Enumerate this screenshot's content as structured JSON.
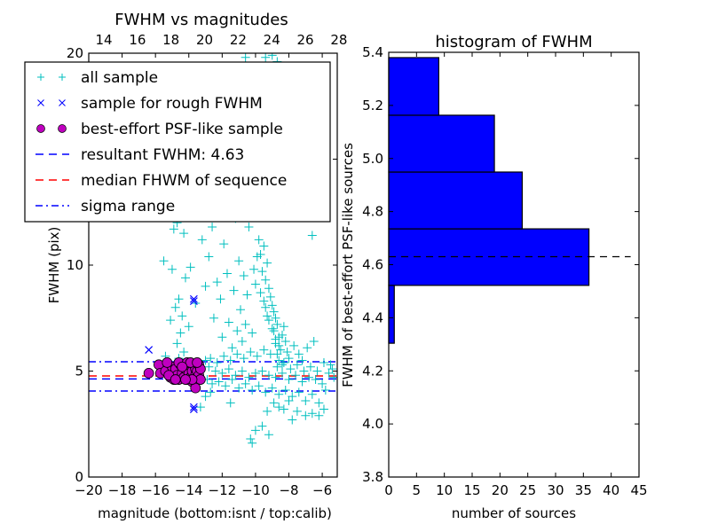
{
  "chart_data": [
    {
      "type": "scatter",
      "title": "FWHM vs magnitudes",
      "xlabel": "magnitude (bottom:isnt / top:calib)",
      "ylabel": "FWHM (pix)",
      "xlim": [
        -20,
        -5.1
      ],
      "ylim": [
        0,
        20
      ],
      "top_xlim": [
        13.1,
        27.9
      ],
      "xticks": [
        -20,
        -18,
        -16,
        -14,
        -12,
        -10,
        -8,
        -6
      ],
      "xtick_labels": [
        "−20",
        "−18",
        "−16",
        "−14",
        "−12",
        "−10",
        "−8",
        "−6"
      ],
      "top_xticks": [
        14,
        16,
        18,
        20,
        22,
        24,
        26,
        28
      ],
      "yticks": [
        0,
        5,
        10,
        20
      ],
      "ytick_labels": [
        "0",
        "5",
        "10",
        "20"
      ],
      "grid": false,
      "legend": {
        "placement": "top-left",
        "entries": [
          {
            "label": "all sample",
            "marker": "+",
            "color": "#00bfbf"
          },
          {
            "label": "sample for rough FWHM",
            "marker": "x",
            "color": "#0000ff"
          },
          {
            "label": "best-effort PSF-like sample",
            "marker": "o",
            "color": "#bf00bf"
          },
          {
            "label": "resultant FWHM: 4.63",
            "marker": "dashed",
            "color": "#0000ff"
          },
          {
            "label": "median FHWM of sequence",
            "marker": "dashed",
            "color": "#ff0000"
          },
          {
            "label": "sigma range",
            "marker": "dashdot",
            "color": "#0000ff"
          }
        ]
      },
      "hlines": [
        {
          "name": "resultant-fwhm",
          "y": 4.63,
          "style": "dashed",
          "color": "#0000ff"
        },
        {
          "name": "median-fwhm",
          "y": 4.77,
          "style": "dashed",
          "color": "#ff0000"
        },
        {
          "name": "sigma-upper",
          "y": 5.44,
          "style": "dashdot",
          "color": "#0000ff"
        },
        {
          "name": "sigma-lower",
          "y": 4.06,
          "style": "dashdot",
          "color": "#0000ff"
        }
      ],
      "series": [
        {
          "name": "all sample",
          "marker": "+",
          "color": "#00bfbf",
          "points": [
            [
              -15.5,
              10.2
            ],
            [
              -14.9,
              11.7
            ],
            [
              -14.7,
              12.0
            ],
            [
              -14.3,
              11.5
            ],
            [
              -15.0,
              9.8
            ],
            [
              -14.2,
              9.4
            ],
            [
              -14.6,
              8.4
            ],
            [
              -14.8,
              8.0
            ],
            [
              -14.4,
              7.6
            ],
            [
              -15.1,
              7.4
            ],
            [
              -14.5,
              6.8
            ],
            [
              -14.7,
              6.3
            ],
            [
              -15.4,
              5.7
            ],
            [
              -14.3,
              5.9
            ],
            [
              -14.6,
              5.6
            ],
            [
              -14.0,
              7.1
            ],
            [
              -13.6,
              8.2
            ],
            [
              -13.9,
              9.9
            ],
            [
              -13.2,
              11.2
            ],
            [
              -13.0,
              9.0
            ],
            [
              -12.2,
              12.6
            ],
            [
              -11.8,
              14.5
            ],
            [
              -12.4,
              16.1
            ],
            [
              -11.5,
              18.2
            ],
            [
              -10.6,
              19.8
            ],
            [
              -9.4,
              19.8
            ],
            [
              -9.0,
              19.9
            ],
            [
              -8.7,
              19.6
            ],
            [
              -12.6,
              11.8
            ],
            [
              -11.9,
              11.0
            ],
            [
              -11.2,
              12.2
            ],
            [
              -10.9,
              13.5
            ],
            [
              -10.3,
              14.8
            ],
            [
              -9.6,
              15.7
            ],
            [
              -9.2,
              16.6
            ],
            [
              -8.9,
              17.3
            ],
            [
              -8.5,
              15.9
            ],
            [
              -8.2,
              14.2
            ],
            [
              -7.6,
              13.8
            ],
            [
              -6.6,
              11.4
            ],
            [
              -9.7,
              10.5
            ],
            [
              -9.5,
              10.9
            ],
            [
              -9.3,
              10.1
            ],
            [
              -9.6,
              9.7
            ],
            [
              -9.4,
              9.3
            ],
            [
              -9.2,
              8.9
            ],
            [
              -9.1,
              8.5
            ],
            [
              -9.0,
              8.1
            ],
            [
              -8.9,
              7.8
            ],
            [
              -8.8,
              7.5
            ],
            [
              -8.7,
              7.2
            ],
            [
              -8.9,
              6.9
            ],
            [
              -8.6,
              6.6
            ],
            [
              -8.8,
              6.3
            ],
            [
              -8.5,
              6.0
            ],
            [
              -8.7,
              5.8
            ],
            [
              -8.6,
              5.5
            ],
            [
              -8.4,
              5.3
            ],
            [
              -9.3,
              7.6
            ],
            [
              -9.5,
              8.3
            ],
            [
              -9.8,
              11.2
            ],
            [
              -9.9,
              10.4
            ],
            [
              -10.1,
              9.8
            ],
            [
              -10.0,
              9.1
            ],
            [
              -9.7,
              8.7
            ],
            [
              -9.4,
              8.0
            ],
            [
              -9.2,
              7.4
            ],
            [
              -9.0,
              7.0
            ],
            [
              -8.8,
              6.5
            ],
            [
              -8.6,
              6.2
            ],
            [
              -8.4,
              6.7
            ],
            [
              -8.3,
              7.1
            ],
            [
              -8.2,
              6.4
            ],
            [
              -8.1,
              5.9
            ],
            [
              -8.0,
              5.6
            ],
            [
              -7.7,
              6.2
            ],
            [
              -7.4,
              5.8
            ],
            [
              -7.2,
              5.5
            ],
            [
              -6.9,
              6.1
            ],
            [
              -6.5,
              6.4
            ],
            [
              -11.0,
              10.2
            ],
            [
              -10.7,
              9.5
            ],
            [
              -10.5,
              8.6
            ],
            [
              -10.9,
              7.9
            ],
            [
              -11.3,
              8.8
            ],
            [
              -11.7,
              9.6
            ],
            [
              -12.1,
              8.4
            ],
            [
              -11.6,
              7.3
            ],
            [
              -11.1,
              6.9
            ],
            [
              -10.6,
              7.2
            ],
            [
              -10.2,
              6.8
            ],
            [
              -10.8,
              6.4
            ],
            [
              -11.4,
              6.1
            ],
            [
              -12.0,
              6.6
            ],
            [
              -12.5,
              7.5
            ],
            [
              -12.8,
              10.4
            ],
            [
              -12.3,
              9.2
            ],
            [
              -10.4,
              11.8
            ],
            [
              -10.2,
              12.9
            ],
            [
              -9.8,
              13.6
            ],
            [
              -12.8,
              5.2
            ],
            [
              -12.4,
              5.0
            ],
            [
              -12.0,
              4.9
            ],
            [
              -11.6,
              5.1
            ],
            [
              -11.2,
              4.8
            ],
            [
              -10.8,
              5.0
            ],
            [
              -10.4,
              4.7
            ],
            [
              -10.0,
              4.9
            ],
            [
              -9.6,
              5.0
            ],
            [
              -9.2,
              4.8
            ],
            [
              -8.8,
              4.7
            ],
            [
              -8.4,
              4.9
            ],
            [
              -8.0,
              4.6
            ],
            [
              -7.6,
              4.8
            ],
            [
              -7.2,
              4.5
            ],
            [
              -6.8,
              4.7
            ],
            [
              -6.4,
              4.6
            ],
            [
              -6.0,
              4.4
            ],
            [
              -5.6,
              4.9
            ],
            [
              -5.3,
              4.7
            ],
            [
              -12.9,
              4.6
            ],
            [
              -12.6,
              4.4
            ],
            [
              -12.2,
              4.5
            ],
            [
              -11.8,
              4.3
            ],
            [
              -11.4,
              4.6
            ],
            [
              -11.0,
              4.2
            ],
            [
              -10.6,
              4.4
            ],
            [
              -10.2,
              4.1
            ],
            [
              -9.8,
              4.3
            ],
            [
              -9.4,
              4.0
            ],
            [
              -9.0,
              4.2
            ],
            [
              -8.6,
              3.9
            ],
            [
              -8.2,
              4.1
            ],
            [
              -7.8,
              3.8
            ],
            [
              -7.4,
              4.0
            ],
            [
              -7.0,
              3.6
            ],
            [
              -6.6,
              3.9
            ],
            [
              -6.2,
              3.5
            ],
            [
              -5.8,
              4.1
            ],
            [
              -5.5,
              5.3
            ],
            [
              -13.0,
              5.5
            ],
            [
              -12.7,
              5.6
            ],
            [
              -12.3,
              5.4
            ],
            [
              -11.9,
              5.7
            ],
            [
              -11.5,
              5.5
            ],
            [
              -11.1,
              5.8
            ],
            [
              -10.7,
              5.6
            ],
            [
              -10.3,
              5.9
            ],
            [
              -9.9,
              5.7
            ],
            [
              -9.5,
              6.0
            ],
            [
              -9.1,
              5.8
            ],
            [
              -8.7,
              5.2
            ],
            [
              -8.3,
              5.4
            ],
            [
              -7.9,
              5.1
            ],
            [
              -7.5,
              5.3
            ],
            [
              -7.1,
              5.0
            ],
            [
              -6.7,
              5.2
            ],
            [
              -6.3,
              5.0
            ],
            [
              -5.9,
              5.4
            ],
            [
              -5.4,
              5.1
            ],
            [
              -8.9,
              3.5
            ],
            [
              -8.6,
              3.3
            ],
            [
              -8.3,
              3.2
            ],
            [
              -9.3,
              3.1
            ],
            [
              -8.0,
              3.6
            ],
            [
              -7.5,
              3.1
            ],
            [
              -7.0,
              2.9
            ],
            [
              -6.6,
              3.0
            ],
            [
              -10.0,
              2.2
            ],
            [
              -10.3,
              1.8
            ],
            [
              -9.6,
              2.4
            ],
            [
              -9.2,
              2.0
            ],
            [
              -10.2,
              1.6
            ],
            [
              -6.2,
              2.9
            ],
            [
              -5.9,
              3.2
            ],
            [
              -7.8,
              2.7
            ],
            [
              -11.5,
              3.5
            ],
            [
              -13.3,
              3.3
            ],
            [
              -13.0,
              3.8
            ],
            [
              -12.7,
              4.0
            ]
          ]
        },
        {
          "name": "sample for rough FWHM",
          "marker": "x",
          "color": "#0000ff",
          "points": [
            [
              -13.7,
              8.3
            ],
            [
              -13.7,
              8.4
            ],
            [
              -16.4,
              6.0
            ],
            [
              -14.5,
              5.4
            ],
            [
              -13.7,
              3.2
            ],
            [
              -13.7,
              3.3
            ]
          ]
        },
        {
          "name": "best-effort PSF-like sample",
          "marker": "o",
          "color": "#bf00bf",
          "points": [
            [
              -16.4,
              4.9
            ],
            [
              -15.8,
              5.3
            ],
            [
              -15.7,
              4.9
            ],
            [
              -15.4,
              5.0
            ],
            [
              -15.1,
              4.7
            ],
            [
              -15.0,
              5.2
            ],
            [
              -14.9,
              4.6
            ],
            [
              -14.8,
              5.1
            ],
            [
              -14.7,
              4.8
            ],
            [
              -14.6,
              4.6
            ],
            [
              -14.5,
              5.3
            ],
            [
              -14.4,
              4.9
            ],
            [
              -14.3,
              4.7
            ],
            [
              -14.2,
              5.1
            ],
            [
              -14.1,
              4.6
            ],
            [
              -14.0,
              4.9
            ],
            [
              -14.0,
              5.3
            ],
            [
              -13.9,
              4.7
            ],
            [
              -13.8,
              5.0
            ],
            [
              -13.8,
              4.5
            ],
            [
              -13.7,
              5.3
            ],
            [
              -13.6,
              4.8
            ],
            [
              -13.6,
              5.1
            ],
            [
              -13.5,
              4.6
            ],
            [
              -13.5,
              5.0
            ],
            [
              -13.4,
              4.8
            ],
            [
              -13.4,
              5.3
            ],
            [
              -13.3,
              4.6
            ],
            [
              -13.3,
              5.1
            ],
            [
              -13.6,
              4.2
            ],
            [
              -15.3,
              5.4
            ],
            [
              -14.6,
              5.4
            ],
            [
              -14.1,
              5.4
            ],
            [
              -13.9,
              5.4
            ],
            [
              -13.5,
              5.4
            ],
            [
              -15.2,
              4.8
            ],
            [
              -14.8,
              4.6
            ],
            [
              -14.4,
              5.2
            ],
            [
              -13.8,
              4.6
            ],
            [
              -14.2,
              4.6
            ]
          ]
        }
      ]
    },
    {
      "type": "bar",
      "orientation": "horizontal",
      "title": "histogram of FWHM",
      "xlabel": "number of sources",
      "ylabel": "FWHM of best-effort PSF-like sources",
      "xlim": [
        0,
        45
      ],
      "ylim": [
        3.8,
        5.4
      ],
      "xticks": [
        0,
        5,
        10,
        15,
        20,
        25,
        30,
        35,
        40,
        45
      ],
      "yticks": [
        3.8,
        4.0,
        4.2,
        4.4,
        4.6,
        4.8,
        5.0,
        5.2,
        5.4
      ],
      "ytick_labels": [
        "3.8",
        "4.0",
        "4.2",
        "4.4",
        "4.6",
        "4.8",
        "5.0",
        "5.2",
        "5.4"
      ],
      "xtick_labels": [
        "0",
        "5",
        "10",
        "15",
        "20",
        "25",
        "30",
        "35",
        "40",
        "45"
      ],
      "grid": false,
      "bar_color": "#0000ff",
      "bins": [
        {
          "from": 4.304,
          "to": 4.522,
          "count": 1
        },
        {
          "from": 4.522,
          "to": 4.735,
          "count": 36
        },
        {
          "from": 4.735,
          "to": 4.949,
          "count": 24
        },
        {
          "from": 4.949,
          "to": 5.163,
          "count": 19
        },
        {
          "from": 5.163,
          "to": 5.38,
          "count": 9
        }
      ],
      "hline": {
        "y": 4.63,
        "style": "dashed",
        "color": "#000000"
      }
    }
  ]
}
